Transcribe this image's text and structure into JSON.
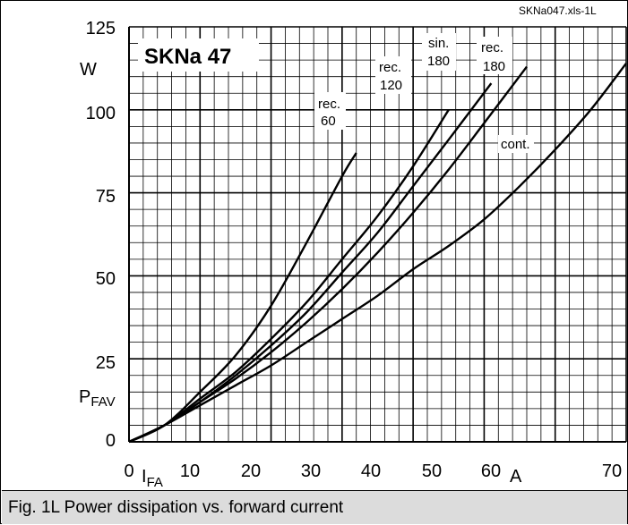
{
  "chart_data": {
    "type": "line",
    "title": "SKNa 47",
    "sheet_id": "SKNa047.xls-1L",
    "caption": "Fig. 1L Power dissipation vs. forward current",
    "ylabel_unit": "W",
    "ylabel_symbol": "P",
    "ylabel_sub": "FAV",
    "xlabel_unit": "A",
    "xlabel_symbol": "I",
    "xlabel_sub": "FA",
    "xlim": [
      0,
      70
    ],
    "ylim": [
      0,
      125
    ],
    "x_ticks": [
      "0",
      "10",
      "20",
      "30",
      "40",
      "50",
      "60",
      "70"
    ],
    "y_ticks": [
      "0",
      "25",
      "50",
      "75",
      "100",
      "125"
    ],
    "grid": true,
    "series": [
      {
        "label_line1": "rec.",
        "label_line2": "60",
        "points": [
          [
            0,
            0
          ],
          [
            5,
            5
          ],
          [
            10,
            15
          ],
          [
            15,
            26
          ],
          [
            20,
            41
          ],
          [
            25,
            60
          ],
          [
            30,
            80
          ],
          [
            32,
            87
          ]
        ]
      },
      {
        "label_line1": "rec.",
        "label_line2": "120",
        "points": [
          [
            0,
            0
          ],
          [
            5,
            5
          ],
          [
            10,
            13
          ],
          [
            15,
            21
          ],
          [
            20,
            31
          ],
          [
            25,
            42
          ],
          [
            30,
            55
          ],
          [
            35,
            68
          ],
          [
            40,
            83
          ],
          [
            45,
            100
          ]
        ]
      },
      {
        "label_line1": "sin.",
        "label_line2": "180",
        "points": [
          [
            0,
            0
          ],
          [
            5,
            5
          ],
          [
            10,
            12
          ],
          [
            15,
            20
          ],
          [
            20,
            29
          ],
          [
            25,
            39
          ],
          [
            30,
            51
          ],
          [
            35,
            63
          ],
          [
            40,
            77
          ],
          [
            45,
            91
          ],
          [
            51,
            108
          ]
        ]
      },
      {
        "label_line1": "rec.",
        "label_line2": "180",
        "points": [
          [
            0,
            0
          ],
          [
            5,
            5
          ],
          [
            10,
            12
          ],
          [
            15,
            19
          ],
          [
            20,
            27
          ],
          [
            25,
            36
          ],
          [
            30,
            46
          ],
          [
            35,
            57
          ],
          [
            40,
            69
          ],
          [
            45,
            82
          ],
          [
            50,
            96
          ],
          [
            56,
            113
          ]
        ]
      },
      {
        "label_line1": "cont.",
        "label_line2": "",
        "points": [
          [
            0,
            0
          ],
          [
            5,
            5
          ],
          [
            10,
            11
          ],
          [
            15,
            17
          ],
          [
            20,
            23
          ],
          [
            25,
            30
          ],
          [
            30,
            37
          ],
          [
            35,
            44
          ],
          [
            40,
            52
          ],
          [
            45,
            59
          ],
          [
            50,
            67
          ],
          [
            55,
            77
          ],
          [
            60,
            88
          ],
          [
            65,
            100
          ],
          [
            70,
            114
          ]
        ]
      }
    ]
  }
}
